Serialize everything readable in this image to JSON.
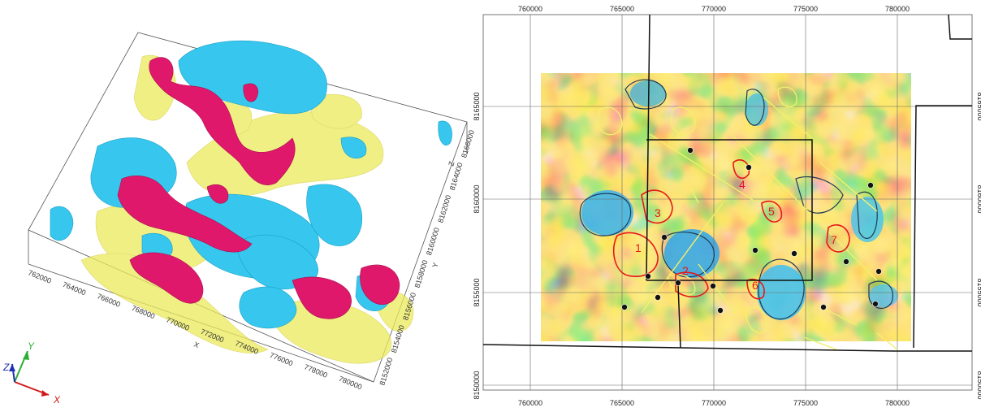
{
  "left_view": {
    "x_ticks": [
      "762000",
      "764000",
      "766000",
      "768000",
      "770000",
      "772000",
      "774000",
      "776000",
      "778000",
      "780000"
    ],
    "x_axis_label": "X",
    "y_ticks": [
      "8152000",
      "8154000",
      "8156000",
      "8158000",
      "8160000",
      "8162000",
      "8164000",
      "8166000"
    ],
    "y_axis_label": "Y",
    "z_axis_label": "Z",
    "triad": {
      "x": "X",
      "y": "Y",
      "z": "Z"
    },
    "colors": {
      "cyan_body": "#37c7ee",
      "magenta_body": "#e0186c",
      "yellow_body": "#ecea5a"
    }
  },
  "right_map": {
    "x_ticks_top": [
      "760000",
      "765000",
      "770000",
      "775000",
      "780000"
    ],
    "x_ticks_bottom": [
      "760000",
      "765000",
      "770000",
      "775000",
      "780000"
    ],
    "y_ticks_left": [
      "8165000",
      "8160000",
      "8155000",
      "8150000"
    ],
    "y_ticks_right": [
      "8165000",
      "8160000",
      "8155000",
      "8150000"
    ],
    "zones": [
      {
        "label": "1"
      },
      {
        "label": "2"
      },
      {
        "label": "3"
      },
      {
        "label": "4"
      },
      {
        "label": "5"
      },
      {
        "label": "6"
      },
      {
        "label": "7"
      }
    ],
    "colors": {
      "red_zone": "#e8161b",
      "yellow_line": "#f3f06a",
      "contour": "#1d3b55"
    }
  }
}
